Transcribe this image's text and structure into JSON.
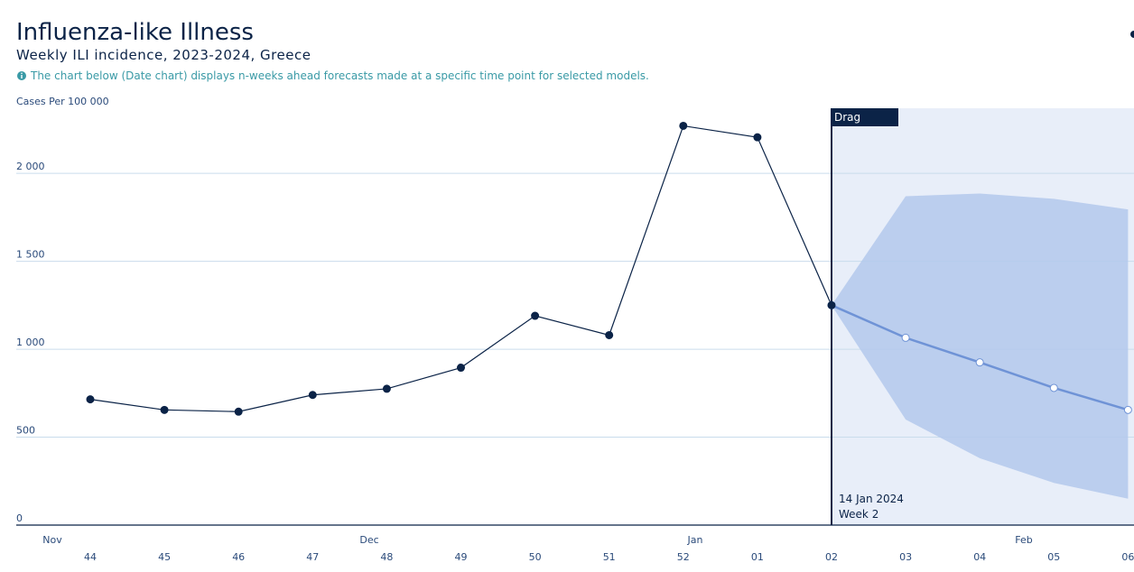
{
  "chart_data": {
    "type": "line",
    "title": "Influenza-like Illness",
    "subtitle": "Weekly ILI incidence, 2023-2024, Greece",
    "note": "The chart below (Date chart) displays n-weeks ahead forecasts made at a specific time point for selected models.",
    "y_label": "Cases Per 100 000",
    "categories": [
      "44",
      "45",
      "46",
      "47",
      "48",
      "49",
      "50",
      "51",
      "52",
      "01",
      "02",
      "03",
      "04",
      "05",
      "06"
    ],
    "months": [
      "Nov",
      "Dec",
      "Jan",
      "Feb"
    ],
    "observed": {
      "color": "#0b2347",
      "values": [
        715,
        655,
        645,
        740,
        775,
        895,
        1190,
        1080,
        2270,
        2205,
        1250,
        null,
        null,
        null,
        null
      ]
    },
    "forecast": {
      "color": "#6f93d6",
      "values": [
        null,
        null,
        null,
        null,
        null,
        null,
        null,
        null,
        null,
        null,
        1250,
        1065,
        925,
        780,
        655
      ]
    },
    "interval": {
      "color": "#b3c8ec",
      "upper": [
        null,
        null,
        null,
        null,
        null,
        null,
        null,
        null,
        null,
        null,
        1250,
        1870,
        1885,
        1855,
        1795
      ],
      "lower": [
        null,
        null,
        null,
        null,
        null,
        null,
        null,
        null,
        null,
        null,
        1250,
        600,
        380,
        240,
        150
      ]
    },
    "marker": {
      "handle": "Drag",
      "date": "14 Jan 2024",
      "week": "Week 2"
    },
    "ylim": [
      0,
      2370
    ],
    "yticks": [
      0,
      500,
      {
        "value": 1000,
        "label": "1 000"
      },
      {
        "value": 1500,
        "label": "1 500"
      },
      {
        "value": 2000,
        "label": "2 000"
      }
    ],
    "grid": true
  }
}
